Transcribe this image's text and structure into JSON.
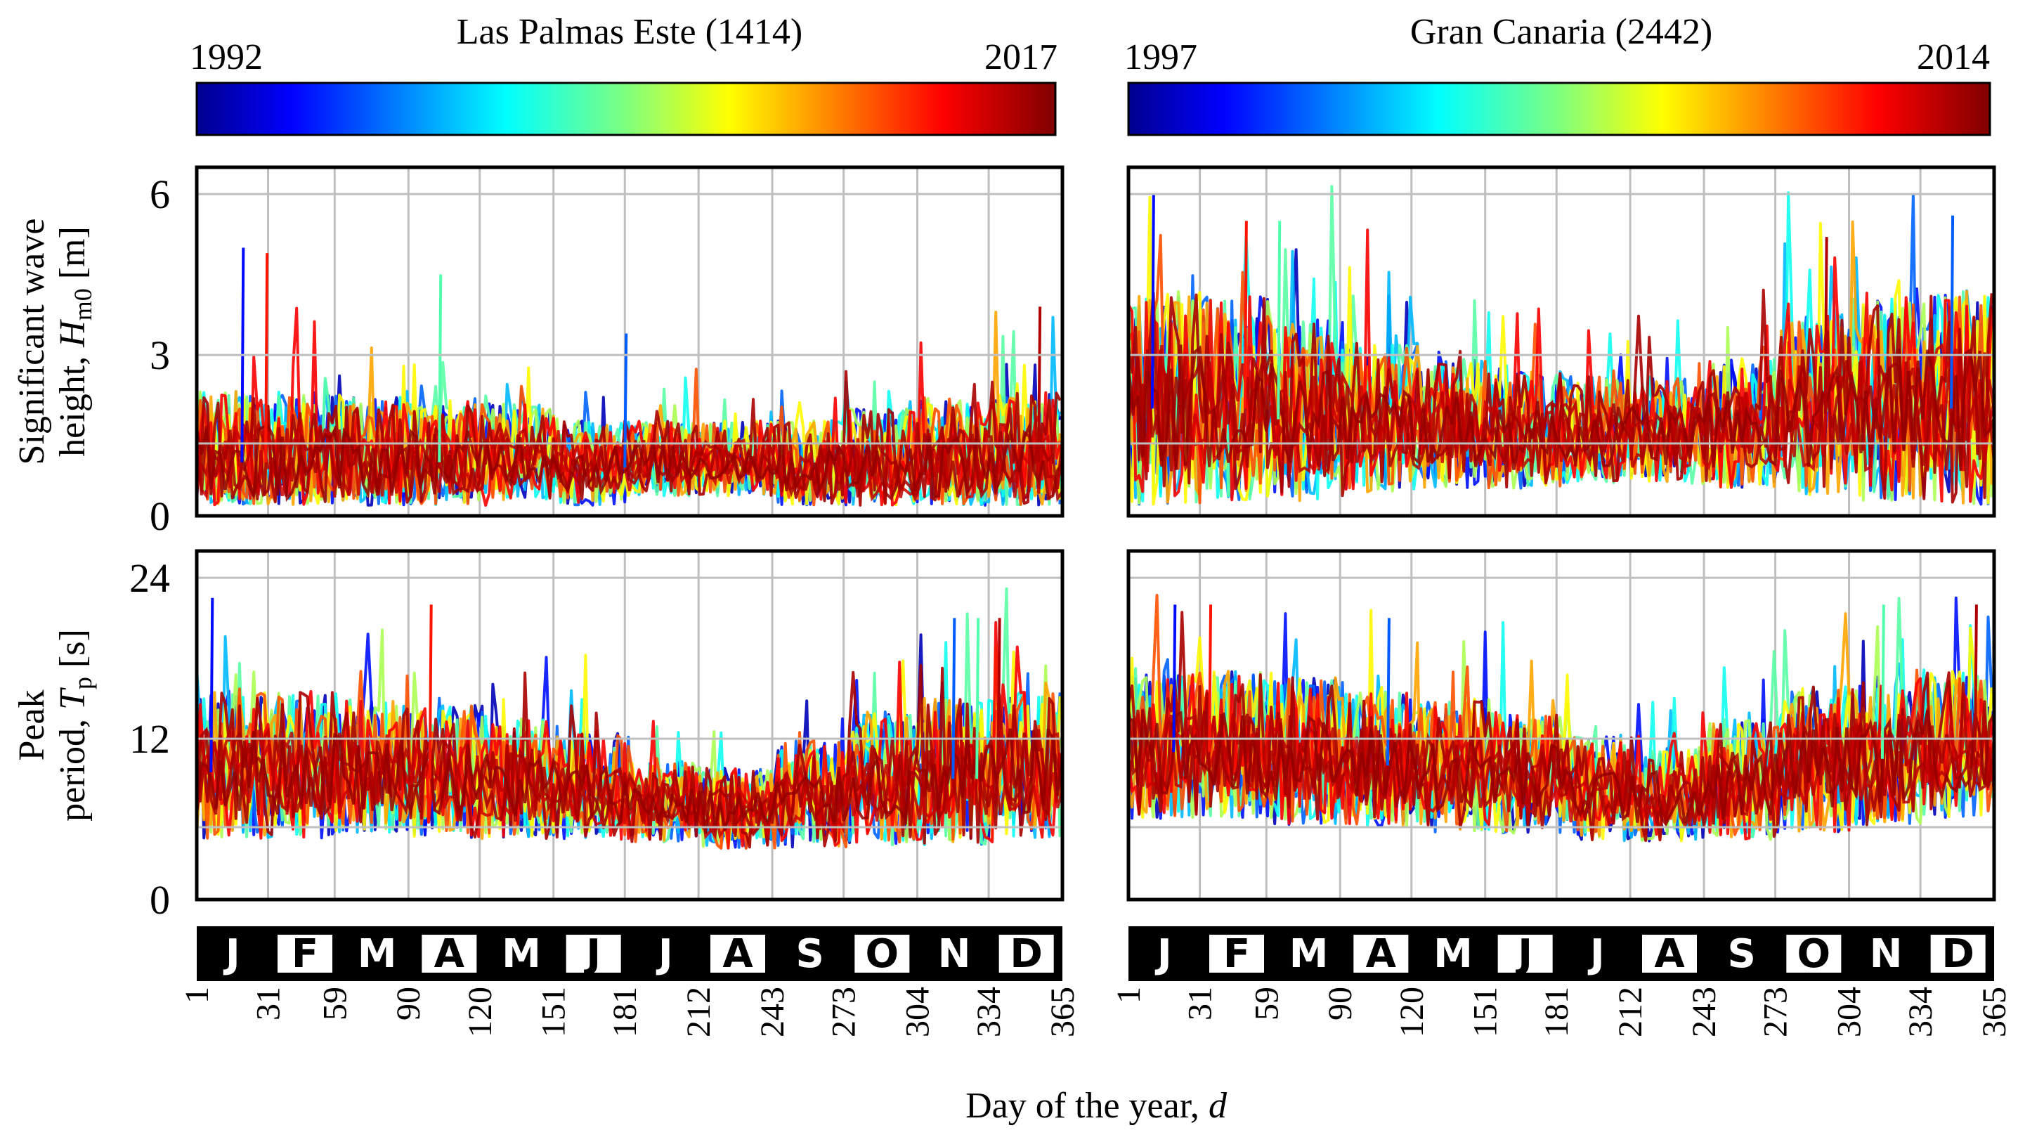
{
  "chart_data": {
    "type": "line",
    "x_axis": {
      "label": "Day of the year, ",
      "label_var": "d",
      "ticks": [
        1,
        31,
        59,
        90,
        120,
        151,
        181,
        212,
        243,
        273,
        304,
        334,
        365
      ],
      "range": [
        1,
        365
      ]
    },
    "months": [
      "J",
      "F",
      "M",
      "A",
      "M",
      "J",
      "J",
      "A",
      "S",
      "O",
      "N",
      "D"
    ],
    "rows": [
      {
        "id": "hm0",
        "label_line1": "Significant wave",
        "label_line2": "height, ",
        "label_var": "H",
        "label_sub": "m0",
        "label_unit": " [m]",
        "ticks": [
          0,
          3,
          6
        ],
        "range": [
          0,
          6.5
        ]
      },
      {
        "id": "tp",
        "label_line1": "Peak",
        "label_line2": "period, ",
        "label_var": "T",
        "label_sub": "p",
        "label_unit": " [s]",
        "ticks": [
          0,
          12,
          24
        ],
        "range": [
          0,
          26
        ]
      }
    ],
    "stations": [
      {
        "name": "Las Palmas Este (1414)",
        "year_start": "1992",
        "year_end": "2017",
        "colormap": "jet",
        "hm0": {
          "base": [
            1.0,
            1.0,
            1.0,
            1.0,
            1.1,
            0.9,
            1.0,
            1.0,
            0.9,
            0.9,
            1.0,
            1.0
          ],
          "spread": [
            1.2,
            1.2,
            1.1,
            1.0,
            0.9,
            0.8,
            0.7,
            0.7,
            0.8,
            1.0,
            1.1,
            1.2
          ],
          "peaks": [
            {
              "day": 20,
              "value": 5.0
            },
            {
              "day": 30,
              "value": 4.9
            },
            {
              "day": 103,
              "value": 4.5
            },
            {
              "day": 355,
              "value": 3.9
            },
            {
              "day": 181,
              "value": 3.4
            }
          ]
        },
        "tp": {
          "base": [
            9.5,
            9.5,
            9.5,
            9.0,
            8.5,
            8.0,
            7.0,
            6.5,
            7.5,
            8.5,
            9.0,
            9.5
          ],
          "spread": [
            5.5,
            5.5,
            5.0,
            5.0,
            4.5,
            4.0,
            3.0,
            3.0,
            4.0,
            5.0,
            5.5,
            5.5
          ],
          "peaks": [
            {
              "day": 7,
              "value": 22.5
            },
            {
              "day": 99,
              "value": 22.0
            },
            {
              "day": 329,
              "value": 21.0
            },
            {
              "day": 338,
              "value": 21.0
            },
            {
              "day": 319,
              "value": 21.0
            }
          ]
        }
      },
      {
        "name": "Gran Canaria (2442)",
        "year_start": "1997",
        "year_end": "2014",
        "colormap": "jet",
        "hm0": {
          "base": [
            2.0,
            2.0,
            1.8,
            1.7,
            1.6,
            1.5,
            1.5,
            1.5,
            1.6,
            1.9,
            2.0,
            2.0
          ],
          "spread": [
            2.0,
            1.9,
            1.7,
            1.4,
            1.2,
            1.1,
            1.0,
            1.0,
            1.2,
            1.7,
            1.9,
            2.0
          ],
          "peaks": [
            {
              "day": 11,
              "value": 6.0
            },
            {
              "day": 50,
              "value": 5.5
            },
            {
              "day": 64,
              "value": 5.5
            },
            {
              "day": 294,
              "value": 5.2
            },
            {
              "day": 347,
              "value": 5.6
            }
          ]
        },
        "tp": {
          "base": [
            11.0,
            11.0,
            10.5,
            10.0,
            9.5,
            9.0,
            8.0,
            7.5,
            8.5,
            10.0,
            10.5,
            11.0
          ],
          "spread": [
            5.5,
            5.5,
            5.5,
            5.0,
            5.0,
            4.5,
            4.0,
            3.5,
            4.5,
            5.5,
            5.5,
            5.5
          ],
          "peaks": [
            {
              "day": 20,
              "value": 22.0
            },
            {
              "day": 35,
              "value": 22.0
            },
            {
              "day": 318,
              "value": 22.0
            },
            {
              "day": 357,
              "value": 22.0
            },
            {
              "day": 110,
              "value": 21.0
            }
          ]
        }
      }
    ]
  }
}
